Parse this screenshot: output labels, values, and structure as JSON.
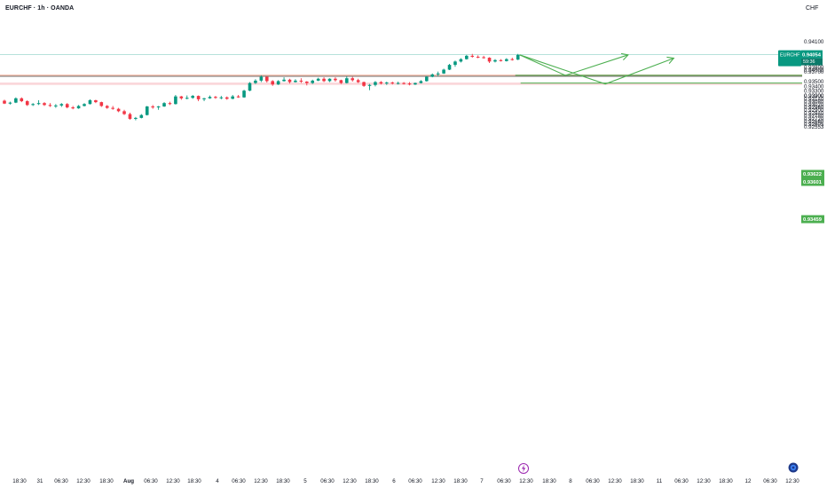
{
  "header": {
    "title": "EURCHF · 1h · OANDA",
    "currency": "CHF"
  },
  "chart_data": {
    "type": "candlestick",
    "instrument": "EURCHF",
    "interval": "1h",
    "broker": "OANDA",
    "y_ticks": [
      "0.94100",
      "0.94000",
      "0.93900",
      "0.93800",
      "0.93700",
      "0.93500",
      "0.93400",
      "0.93300",
      "0.93200",
      "0.93140",
      "0.93080",
      "0.93020",
      "0.92960",
      "0.92900",
      "0.92840",
      "0.92780",
      "0.92720",
      "0.92660",
      "0.92605",
      "0.92553"
    ],
    "x_ticks": [
      "18:30",
      "31",
      "06:30",
      "12:30",
      "18:30",
      "Aug",
      "06:30",
      "12:30",
      "18:30",
      "4",
      "06:30",
      "12:30",
      "18:30",
      "5",
      "06:30",
      "12:30",
      "18:30",
      "6",
      "06:30",
      "12:30",
      "18:30",
      "7",
      "06:30",
      "12:30",
      "18:30",
      "8",
      "06:30",
      "12:30",
      "18:30",
      "11",
      "06:30",
      "12:30",
      "18:30",
      "12",
      "06:30",
      "12:30"
    ],
    "price_labels": {
      "current": {
        "symbol": "EURCHF",
        "value": "0.94054",
        "countdown": "59:36",
        "color": "#089981"
      },
      "resistance_top": {
        "value": "0.93622",
        "color": "#4caf50"
      },
      "resistance_bottom": {
        "value": "0.93601",
        "color": "#4caf50"
      },
      "support": {
        "value": "0.93459",
        "color": "#4caf50"
      }
    },
    "zones": [
      {
        "name": "upper-zone",
        "from": 0.93601,
        "to": 0.9364,
        "color": "#f5b7a3"
      },
      {
        "name": "lower-zone",
        "from": 0.9342,
        "to": 0.9347,
        "color": "#f8c9ce"
      }
    ],
    "colors": {
      "up": "#089981",
      "down": "#f23645",
      "projection": "#4caf50"
    },
    "candles": [
      [
        0.9309,
        0.9311,
        0.9302,
        0.9303
      ],
      [
        0.9303,
        0.9307,
        0.9301,
        0.9305
      ],
      [
        0.9305,
        0.9316,
        0.9304,
        0.9314
      ],
      [
        0.9314,
        0.9316,
        0.9306,
        0.9308
      ],
      [
        0.9308,
        0.931,
        0.9298,
        0.93
      ],
      [
        0.93,
        0.9304,
        0.9298,
        0.9302
      ],
      [
        0.9302,
        0.931,
        0.93,
        0.9304
      ],
      [
        0.9304,
        0.9306,
        0.9298,
        0.93
      ],
      [
        0.93,
        0.9304,
        0.9296,
        0.9298
      ],
      [
        0.9298,
        0.9302,
        0.9294,
        0.9299
      ],
      [
        0.9299,
        0.9304,
        0.9296,
        0.9302
      ],
      [
        0.9302,
        0.9304,
        0.9293,
        0.9295
      ],
      [
        0.9295,
        0.9298,
        0.9291,
        0.9293
      ],
      [
        0.9293,
        0.93,
        0.9292,
        0.9298
      ],
      [
        0.9298,
        0.9304,
        0.9297,
        0.9302
      ],
      [
        0.9302,
        0.9312,
        0.9301,
        0.931
      ],
      [
        0.931,
        0.9311,
        0.9304,
        0.9306
      ],
      [
        0.9306,
        0.9307,
        0.9296,
        0.9298
      ],
      [
        0.9298,
        0.93,
        0.9292,
        0.9294
      ],
      [
        0.9294,
        0.9298,
        0.929,
        0.9292
      ],
      [
        0.9292,
        0.9294,
        0.9285,
        0.9287
      ],
      [
        0.9287,
        0.929,
        0.9279,
        0.9281
      ],
      [
        0.9281,
        0.9284,
        0.9269,
        0.9271
      ],
      [
        0.9271,
        0.9275,
        0.9268,
        0.9273
      ],
      [
        0.9273,
        0.9281,
        0.9272,
        0.9279
      ],
      [
        0.9279,
        0.9298,
        0.9278,
        0.9297
      ],
      [
        0.9297,
        0.93,
        0.9292,
        0.9295
      ],
      [
        0.9295,
        0.9298,
        0.929,
        0.9297
      ],
      [
        0.9297,
        0.9306,
        0.9296,
        0.9304
      ],
      [
        0.9304,
        0.9307,
        0.93,
        0.9302
      ],
      [
        0.9302,
        0.9321,
        0.9301,
        0.9318
      ],
      [
        0.9318,
        0.9319,
        0.9311,
        0.9314
      ],
      [
        0.9314,
        0.932,
        0.9312,
        0.9315
      ],
      [
        0.9315,
        0.9321,
        0.9313,
        0.9319
      ],
      [
        0.9319,
        0.932,
        0.9308,
        0.9312
      ],
      [
        0.9312,
        0.9315,
        0.9308,
        0.9314
      ],
      [
        0.9314,
        0.932,
        0.9313,
        0.9317
      ],
      [
        0.9317,
        0.9319,
        0.9313,
        0.9315
      ],
      [
        0.9315,
        0.9319,
        0.9312,
        0.9316
      ],
      [
        0.9316,
        0.9318,
        0.9311,
        0.9313
      ],
      [
        0.9313,
        0.9321,
        0.9312,
        0.9318
      ],
      [
        0.9318,
        0.9321,
        0.9315,
        0.9316
      ],
      [
        0.9316,
        0.9332,
        0.9315,
        0.933
      ],
      [
        0.933,
        0.9348,
        0.9329,
        0.9346
      ],
      [
        0.9346,
        0.9354,
        0.9344,
        0.9351
      ],
      [
        0.9351,
        0.9362,
        0.9348,
        0.9359
      ],
      [
        0.9359,
        0.936,
        0.9347,
        0.935
      ],
      [
        0.935,
        0.9352,
        0.934,
        0.9343
      ],
      [
        0.9343,
        0.9352,
        0.9342,
        0.935
      ],
      [
        0.935,
        0.9358,
        0.9349,
        0.9353
      ],
      [
        0.9353,
        0.9355,
        0.9345,
        0.9348
      ],
      [
        0.9348,
        0.9354,
        0.9347,
        0.9351
      ],
      [
        0.9351,
        0.9356,
        0.9346,
        0.9349
      ],
      [
        0.9349,
        0.935,
        0.9341,
        0.9346
      ],
      [
        0.9346,
        0.9353,
        0.9344,
        0.9351
      ],
      [
        0.9351,
        0.9357,
        0.935,
        0.9355
      ],
      [
        0.9355,
        0.9358,
        0.9348,
        0.935
      ],
      [
        0.935,
        0.9356,
        0.9348,
        0.9355
      ],
      [
        0.9355,
        0.9358,
        0.9349,
        0.9352
      ],
      [
        0.9352,
        0.9353,
        0.9344,
        0.9346
      ],
      [
        0.9346,
        0.936,
        0.9345,
        0.9356
      ],
      [
        0.9356,
        0.9359,
        0.9349,
        0.9352
      ],
      [
        0.9352,
        0.9355,
        0.9346,
        0.9348
      ],
      [
        0.9348,
        0.9349,
        0.9338,
        0.934
      ],
      [
        0.934,
        0.9344,
        0.9331,
        0.9342
      ],
      [
        0.9342,
        0.935,
        0.9339,
        0.9348
      ],
      [
        0.9348,
        0.935,
        0.9343,
        0.9345
      ],
      [
        0.9345,
        0.9349,
        0.9342,
        0.9347
      ],
      [
        0.9347,
        0.9349,
        0.9343,
        0.9346
      ],
      [
        0.9346,
        0.9349,
        0.9343,
        0.9346
      ],
      [
        0.9346,
        0.9348,
        0.9343,
        0.9345
      ],
      [
        0.9345,
        0.9348,
        0.9341,
        0.9343
      ],
      [
        0.9343,
        0.9347,
        0.9342,
        0.9346
      ],
      [
        0.9346,
        0.9352,
        0.9345,
        0.935
      ],
      [
        0.935,
        0.9361,
        0.9349,
        0.9359
      ],
      [
        0.9359,
        0.9366,
        0.9358,
        0.9364
      ],
      [
        0.9364,
        0.937,
        0.936,
        0.9366
      ],
      [
        0.9366,
        0.9376,
        0.9365,
        0.9374
      ],
      [
        0.9374,
        0.9386,
        0.9373,
        0.9384
      ],
      [
        0.9384,
        0.9393,
        0.938,
        0.9391
      ],
      [
        0.9391,
        0.9398,
        0.9389,
        0.9396
      ],
      [
        0.9396,
        0.9405,
        0.9395,
        0.9403
      ],
      [
        0.9403,
        0.9407,
        0.9399,
        0.9401
      ],
      [
        0.9401,
        0.9404,
        0.9398,
        0.94
      ],
      [
        0.94,
        0.9403,
        0.9397,
        0.9399
      ],
      [
        0.9399,
        0.94,
        0.9388,
        0.9391
      ],
      [
        0.9391,
        0.9396,
        0.9389,
        0.9394
      ],
      [
        0.9394,
        0.9396,
        0.9391,
        0.9392
      ],
      [
        0.9392,
        0.9398,
        0.9391,
        0.9396
      ],
      [
        0.9396,
        0.9399,
        0.9393,
        0.9395
      ],
      [
        0.9395,
        0.9407,
        0.9394,
        0.9405
      ]
    ],
    "projection_paths": [
      [
        [
          0.9405,
          0
        ],
        [
          0.9362,
          8
        ],
        [
          0.9405,
          19
        ]
      ],
      [
        [
          0.9405,
          0
        ],
        [
          0.9344,
          15
        ],
        [
          0.9398,
          27
        ]
      ]
    ]
  }
}
